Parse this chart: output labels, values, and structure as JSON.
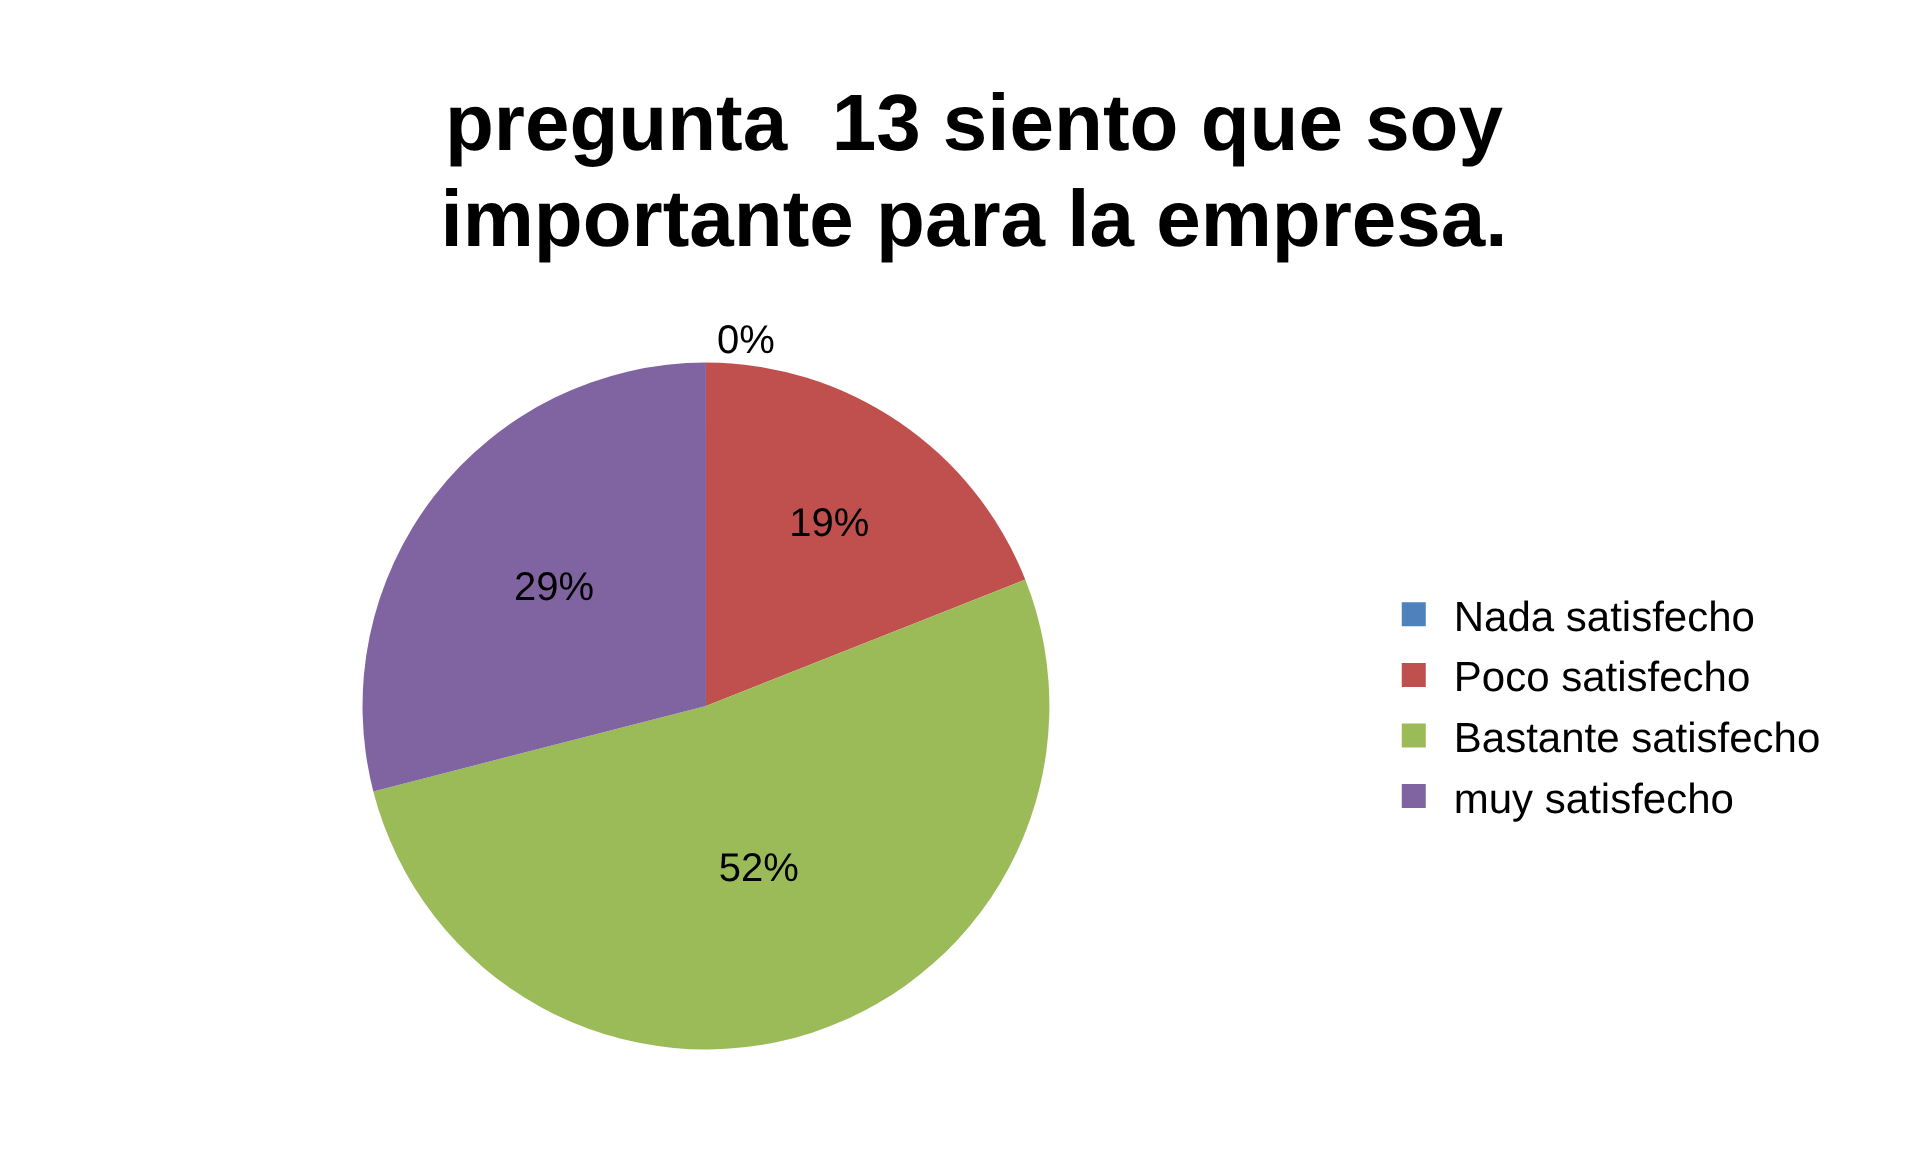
{
  "chart_data": {
    "type": "pie",
    "title": "pregunta  13 siento que soy importante para la empresa.",
    "categories": [
      "Nada satisfecho",
      "Poco satisfecho",
      "Bastante satisfecho",
      "muy satisfecho"
    ],
    "values": [
      0,
      19,
      52,
      29
    ],
    "colors": [
      "#4f81bd",
      "#c0504d",
      "#9bbb59",
      "#8064a2"
    ],
    "value_labels": [
      "0%",
      "19%",
      "52%",
      "29%"
    ],
    "legend": "right"
  }
}
